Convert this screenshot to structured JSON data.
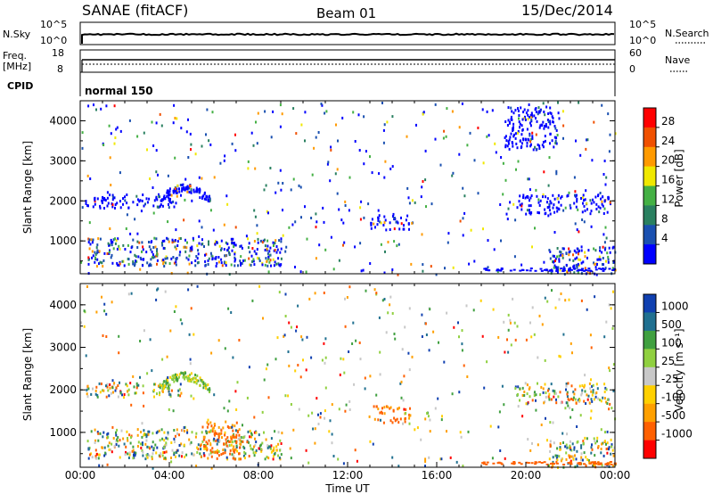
{
  "header": {
    "station": "SANAE (fitACF)",
    "beam": "Beam 01",
    "date": "15/Dec/2014"
  },
  "top_panels": {
    "nsky": {
      "label": "N.Sky",
      "ticks": [
        "10^5",
        "10^0"
      ],
      "right_ticks": [
        "10^5",
        "10^0"
      ],
      "right_label": "N.Search"
    },
    "freq": {
      "label_line1": "Freq.",
      "label_line2": "[MHz]",
      "left_ticks": [
        "18",
        "8"
      ],
      "right_ticks": [
        "60",
        "0"
      ],
      "right_label": "Nave"
    },
    "cpid": {
      "label": "CPID",
      "value": "normal 150"
    }
  },
  "colorbars": {
    "power": {
      "label": "Power [dB]",
      "ticks": [
        "28",
        "24",
        "20",
        "16",
        "12",
        "8",
        "4"
      ],
      "colors": [
        "#ff0000",
        "#f05000",
        "#ff9a00",
        "#f0e800",
        "#44b044",
        "#2a8060",
        "#1a50b0",
        "#0000ff"
      ]
    },
    "velocity": {
      "label": "Velocity [m s⁻¹]",
      "ticks": [
        "1000",
        "500",
        "100",
        "25",
        "-25",
        "-100",
        "-500",
        "-1000"
      ],
      "colors": [
        "#1040b0",
        "#207090",
        "#40a040",
        "#90d040",
        "#c8c8c8",
        "#ffd000",
        "#ffa000",
        "#ff6000",
        "#ff0000"
      ]
    }
  },
  "chart_data": [
    {
      "type": "heatmap",
      "panel": "power",
      "ylabel": "Slant Range [km]",
      "ylim": [
        180,
        4500
      ],
      "yticks": [
        "4000",
        "3000",
        "2000",
        "1000"
      ],
      "xlim": [
        "00:00",
        "24:00"
      ],
      "regions": [
        {
          "t0": 0.2,
          "t1": 4.5,
          "r0": 1850,
          "r1": 2200,
          "dominant": "low-power (blue)"
        },
        {
          "t0": 3.5,
          "t1": 5.8,
          "r0": 1700,
          "r1": 2400,
          "dominant": "low-power (blue)"
        },
        {
          "t0": 0.3,
          "t1": 9.0,
          "r0": 400,
          "r1": 1100,
          "dominant": "mixed (blue/green/orange)"
        },
        {
          "t0": 13.0,
          "t1": 14.8,
          "r0": 1300,
          "r1": 1700,
          "dominant": "low-power (blue)"
        },
        {
          "t0": 19.5,
          "t1": 23.8,
          "r0": 1700,
          "r1": 2200,
          "dominant": "low-power (blue)"
        },
        {
          "t0": 19.0,
          "t1": 21.5,
          "r0": 3300,
          "r1": 4400,
          "dominant": "low-power (blue)"
        },
        {
          "t0": 21.0,
          "t1": 24.0,
          "r0": 200,
          "r1": 900,
          "dominant": "mixed (blue/orange)"
        }
      ]
    },
    {
      "type": "heatmap",
      "panel": "velocity",
      "ylabel": "Slant Range [km]",
      "ylim": [
        180,
        4500
      ],
      "yticks": [
        "4000",
        "3000",
        "2000",
        "1000"
      ],
      "xlim": [
        "00:00",
        "24:00"
      ],
      "xticks": [
        "00:00",
        "04:00",
        "08:00",
        "12:00",
        "16:00",
        "20:00",
        "00:00"
      ],
      "xlabel": "Time UT",
      "regions": [
        {
          "t0": 0.2,
          "t1": 4.5,
          "r0": 1850,
          "r1": 2200,
          "dominant": "mixed (blue/green/grey)"
        },
        {
          "t0": 3.5,
          "t1": 5.8,
          "r0": 1700,
          "r1": 2500,
          "dominant": "positive (green/yellow)"
        },
        {
          "t0": 0.3,
          "t1": 9.0,
          "r0": 400,
          "r1": 1100,
          "dominant": "mixed (green/orange)"
        },
        {
          "t0": 5.5,
          "t1": 7.2,
          "r0": 400,
          "r1": 1300,
          "dominant": "negative (orange)"
        },
        {
          "t0": 13.0,
          "t1": 14.8,
          "r0": 1250,
          "r1": 1650,
          "dominant": "negative (orange)"
        },
        {
          "t0": 19.5,
          "t1": 23.8,
          "r0": 1700,
          "r1": 2200,
          "dominant": "mixed"
        },
        {
          "t0": 21.0,
          "t1": 24.0,
          "r0": 200,
          "r1": 900,
          "dominant": "mixed (blue/orange)"
        }
      ]
    }
  ]
}
